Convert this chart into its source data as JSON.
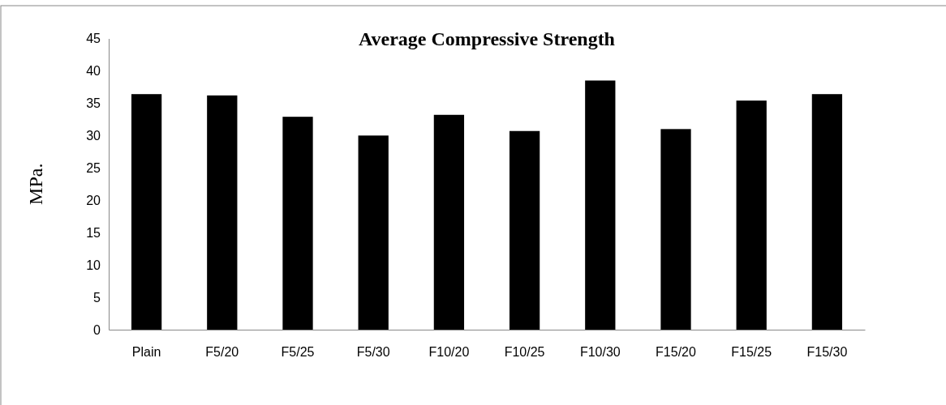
{
  "chart_data": {
    "type": "bar",
    "title": "Average Compressive Strength",
    "ylabel": "MPa.",
    "categories": [
      "Plain",
      "F5/20",
      "F5/25",
      "F5/30",
      "F10/20",
      "F10/25",
      "F10/30",
      "F15/20",
      "F15/25",
      "F15/30"
    ],
    "values": [
      36.4,
      36.2,
      32.9,
      30.0,
      33.2,
      30.7,
      38.5,
      31.0,
      35.4,
      36.4
    ],
    "color": "#000000",
    "ylim": [
      0,
      45
    ],
    "yticks": [
      0,
      5,
      10,
      15,
      20,
      25,
      30,
      35,
      40,
      45
    ],
    "grid": false
  }
}
